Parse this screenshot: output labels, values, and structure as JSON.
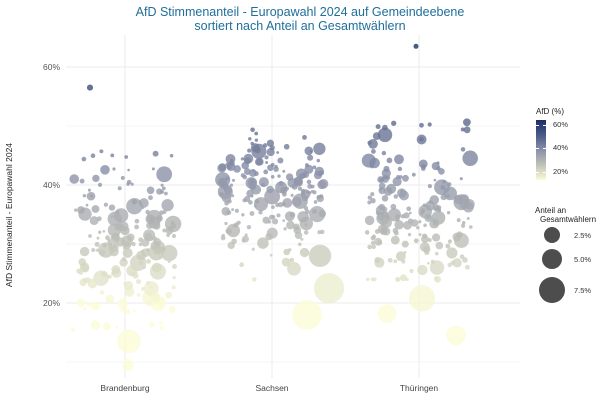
{
  "chart_data": {
    "type": "scatter",
    "title": "AfD Stimmenanteil - Europawahl 2024 auf Gemeindeebene",
    "subtitle": "sortiert nach Anteil an Gesamtwählern",
    "xlabel": "",
    "ylabel": "AfD Stimmenanteil - Europawahl 2024",
    "categories": [
      "Brandenburg",
      "Sachsen",
      "Thüringen"
    ],
    "y_ticks": [
      "20%",
      "40%",
      "60%"
    ],
    "y_tick_values": [
      20,
      40,
      60
    ],
    "ylim": [
      5,
      68
    ],
    "grid": true,
    "legend_color": {
      "title": "AfD (%)",
      "labels": [
        "20%",
        "40%",
        "60%"
      ],
      "values": [
        20,
        40,
        60
      ],
      "low_color": "#fbfbd6",
      "mid_color": "#8a90a8",
      "high_color": "#1a2f66"
    },
    "legend_size": {
      "title_line1": "Anteil an",
      "title_line2": "Gesamtwählern",
      "labels": [
        "2.5%",
        "5.0%",
        "7.5%"
      ],
      "values": [
        2.5,
        5.0,
        7.5
      ]
    },
    "highlight_points": [
      {
        "category": "Brandenburg",
        "y": 13.5,
        "share": 4.5
      },
      {
        "category": "Brandenburg",
        "y": 9.5,
        "share": 1.0
      },
      {
        "category": "Brandenburg",
        "y": 56.5,
        "share": 0.3
      },
      {
        "category": "Sachsen",
        "y": 18.0,
        "share": 7.0
      },
      {
        "category": "Sachsen",
        "y": 22.5,
        "share": 7.3
      },
      {
        "category": "Sachsen",
        "y": 28.0,
        "share": 4.0
      },
      {
        "category": "Sachsen",
        "y": 25.8,
        "share": 1.5
      },
      {
        "category": "Thüringen",
        "y": 20.8,
        "share": 5.5
      },
      {
        "category": "Thüringen",
        "y": 18.2,
        "share": 2.8
      },
      {
        "category": "Thüringen",
        "y": 14.5,
        "share": 3.0
      },
      {
        "category": "Thüringen",
        "y": 63.5,
        "share": 0.2
      }
    ],
    "filler_points_per_category": [
      190,
      190,
      190
    ]
  }
}
